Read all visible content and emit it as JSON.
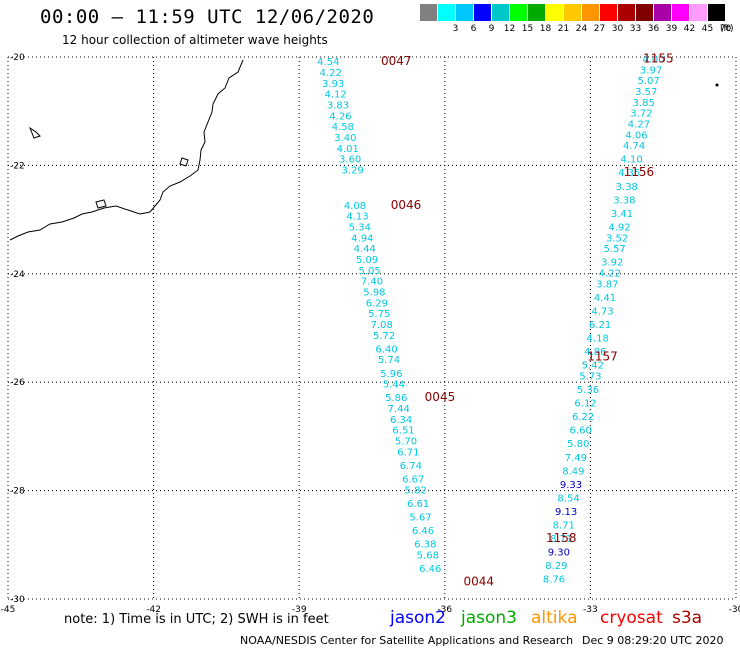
{
  "title": "00:00 – 11:59 UTC 12/06/2020",
  "subtitle": "12 hour collection of altimeter wave heights",
  "legend": {
    "colors": [
      "#808080",
      "#00ffff",
      "#00c8ff",
      "#0000ff",
      "#00c8c8",
      "#00ff00",
      "#00aa00",
      "#ffff00",
      "#ffc800",
      "#ff9600",
      "#ff0000",
      "#aa0000",
      "#800000",
      "#aa00aa",
      "#ff00ff",
      "#ff9cff",
      "#000000"
    ],
    "labels": [
      "",
      "3",
      "6",
      "9",
      "12",
      "15",
      "18",
      "21",
      "24",
      "27",
      "30",
      "33",
      "36",
      "39",
      "42",
      "45",
      "70"
    ],
    "unit": "(ft)"
  },
  "note": "note: 1) Time is in UTC; 2) SWH is in feet",
  "satellites": [
    {
      "name": "jason2",
      "color": "#0000ff"
    },
    {
      "name": "jason3",
      "color": "#00aa00"
    },
    {
      "name": "altika",
      "color": "#ff9600"
    },
    {
      "name": "cryosat",
      "color": "#ff0000"
    },
    {
      "name": "s3a",
      "color": "#aa0000"
    }
  ],
  "credit": "NOAA/NESDIS Center for Satellite Applications and Research",
  "timestamp": "Dec  9 08:29:20 UTC 2020",
  "map": {
    "lon_range": [
      -45,
      -30
    ],
    "lat_range": [
      -30,
      -20
    ],
    "lon_ticks": [
      -45,
      -42,
      -39,
      -36,
      -33,
      -30
    ],
    "lat_ticks": [
      -20,
      -22,
      -24,
      -26,
      -28,
      -30
    ],
    "colors": {
      "cyan": "#00c8e0",
      "blue": "#0000c8",
      "time": "#8b0000"
    },
    "tracks": [
      {
        "name": "pass-0044",
        "time_labels": [
          {
            "text": "0047",
            "lon": -37.0,
            "lat": -20.15
          },
          {
            "text": "0046",
            "lon": -36.8,
            "lat": -22.8
          },
          {
            "text": "0045",
            "lon": -36.1,
            "lat": -26.35
          },
          {
            "text": "0044",
            "lon": -35.3,
            "lat": -29.75
          }
        ],
        "points": [
          {
            "v": "4.54",
            "lon": -38.4,
            "lat": -20.15
          },
          {
            "v": "4.22",
            "lon": -38.35,
            "lat": -20.35
          },
          {
            "v": "3.93",
            "lon": -38.3,
            "lat": -20.55
          },
          {
            "v": "4.12",
            "lon": -38.25,
            "lat": -20.75
          },
          {
            "v": "3.83",
            "lon": -38.2,
            "lat": -20.95
          },
          {
            "v": "4.26",
            "lon": -38.15,
            "lat": -21.15
          },
          {
            "v": "4.58",
            "lon": -38.1,
            "lat": -21.35
          },
          {
            "v": "3.40",
            "lon": -38.05,
            "lat": -21.55
          },
          {
            "v": "4.01",
            "lon": -38.0,
            "lat": -21.75
          },
          {
            "v": "3.60",
            "lon": -37.95,
            "lat": -21.95
          },
          {
            "v": "3.29",
            "lon": -37.9,
            "lat": -22.15
          },
          {
            "v": "4.08",
            "lon": -37.85,
            "lat": -22.8
          },
          {
            "v": "4.13",
            "lon": -37.8,
            "lat": -23.0
          },
          {
            "v": "5.34",
            "lon": -37.75,
            "lat": -23.2
          },
          {
            "v": "4.94",
            "lon": -37.7,
            "lat": -23.4
          },
          {
            "v": "4.44",
            "lon": -37.65,
            "lat": -23.6
          },
          {
            "v": "5.09",
            "lon": -37.6,
            "lat": -23.8
          },
          {
            "v": "5.05",
            "lon": -37.55,
            "lat": -24.0
          },
          {
            "v": "7.40",
            "lon": -37.5,
            "lat": -24.2
          },
          {
            "v": "5.98",
            "lon": -37.45,
            "lat": -24.4
          },
          {
            "v": "6.29",
            "lon": -37.4,
            "lat": -24.6
          },
          {
            "v": "5.75",
            "lon": -37.35,
            "lat": -24.8
          },
          {
            "v": "7.08",
            "lon": -37.3,
            "lat": -25.0
          },
          {
            "v": "5.72",
            "lon": -37.25,
            "lat": -25.2
          },
          {
            "v": "6.40",
            "lon": -37.2,
            "lat": -25.45
          },
          {
            "v": "5.74",
            "lon": -37.15,
            "lat": -25.65
          },
          {
            "v": "5.96",
            "lon": -37.1,
            "lat": -25.9
          },
          {
            "v": "5.44",
            "lon": -37.05,
            "lat": -26.1
          },
          {
            "v": "5.86",
            "lon": -37.0,
            "lat": -26.35
          },
          {
            "v": "7.44",
            "lon": -36.95,
            "lat": -26.55
          },
          {
            "v": "6.34",
            "lon": -36.9,
            "lat": -26.75
          },
          {
            "v": "6.51",
            "lon": -36.85,
            "lat": -26.95
          },
          {
            "v": "5.70",
            "lon": -36.8,
            "lat": -27.15
          },
          {
            "v": "6.71",
            "lon": -36.75,
            "lat": -27.35
          },
          {
            "v": "6.74",
            "lon": -36.7,
            "lat": -27.6
          },
          {
            "v": "6.67",
            "lon": -36.65,
            "lat": -27.85
          },
          {
            "v": "5.82",
            "lon": -36.6,
            "lat": -28.05
          },
          {
            "v": "6.61",
            "lon": -36.55,
            "lat": -28.3
          },
          {
            "v": "5.67",
            "lon": -36.5,
            "lat": -28.55
          },
          {
            "v": "6.46",
            "lon": -36.45,
            "lat": -28.8
          },
          {
            "v": "6.38",
            "lon": -36.4,
            "lat": -29.05
          },
          {
            "v": "5.68",
            "lon": -36.35,
            "lat": -29.25
          },
          {
            "v": "6.46",
            "lon": -36.3,
            "lat": -29.5
          }
        ]
      },
      {
        "name": "pass-1155",
        "time_labels": [
          {
            "text": "1155",
            "lon": -31.6,
            "lat": -20.1
          },
          {
            "text": "1156",
            "lon": -32.0,
            "lat": -22.2
          },
          {
            "text": "1157",
            "lon": -32.75,
            "lat": -25.6
          },
          {
            "text": "1158",
            "lon": -33.6,
            "lat": -28.95
          }
        ],
        "points": [
          {
            "v": "4.00",
            "lon": -31.7,
            "lat": -20.1
          },
          {
            "v": "3.97",
            "lon": -31.75,
            "lat": -20.3
          },
          {
            "v": "5.07",
            "lon": -31.8,
            "lat": -20.5
          },
          {
            "v": "3.57",
            "lon": -31.85,
            "lat": -20.7
          },
          {
            "v": "3.85",
            "lon": -31.9,
            "lat": -20.9
          },
          {
            "v": "3.72",
            "lon": -31.95,
            "lat": -21.1
          },
          {
            "v": "4.27",
            "lon": -32.0,
            "lat": -21.3
          },
          {
            "v": "4.06",
            "lon": -32.05,
            "lat": -21.5
          },
          {
            "v": "4.74",
            "lon": -32.1,
            "lat": -21.7
          },
          {
            "v": "4.10",
            "lon": -32.15,
            "lat": -21.95
          },
          {
            "v": "4.35",
            "lon": -32.2,
            "lat": -22.2
          },
          {
            "v": "3.38",
            "lon": -32.25,
            "lat": -22.45
          },
          {
            "v": "3.38",
            "lon": -32.3,
            "lat": -22.7
          },
          {
            "v": "3.41",
            "lon": -32.35,
            "lat": -22.95
          },
          {
            "v": "4.92",
            "lon": -32.4,
            "lat": -23.2
          },
          {
            "v": "3.52",
            "lon": -32.45,
            "lat": -23.4
          },
          {
            "v": "5.57",
            "lon": -32.5,
            "lat": -23.6
          },
          {
            "v": "3.92",
            "lon": -32.55,
            "lat": -23.85
          },
          {
            "v": "4.22",
            "lon": -32.6,
            "lat": -24.05
          },
          {
            "v": "3.87",
            "lon": -32.65,
            "lat": -24.25
          },
          {
            "v": "4.41",
            "lon": -32.7,
            "lat": -24.5
          },
          {
            "v": "4.73",
            "lon": -32.75,
            "lat": -24.75
          },
          {
            "v": "6.21",
            "lon": -32.8,
            "lat": -25.0
          },
          {
            "v": "4.18",
            "lon": -32.85,
            "lat": -25.25
          },
          {
            "v": "4.86",
            "lon": -32.9,
            "lat": -25.5
          },
          {
            "v": "5.42",
            "lon": -32.95,
            "lat": -25.75
          },
          {
            "v": "5.73",
            "lon": -33.0,
            "lat": -25.95
          },
          {
            "v": "5.36",
            "lon": -33.05,
            "lat": -26.2
          },
          {
            "v": "6.12",
            "lon": -33.1,
            "lat": -26.45
          },
          {
            "v": "6.22",
            "lon": -33.15,
            "lat": -26.7
          },
          {
            "v": "6.60",
            "lon": -33.2,
            "lat": -26.95
          },
          {
            "v": "5.80",
            "lon": -33.25,
            "lat": -27.2
          },
          {
            "v": "7.49",
            "lon": -33.3,
            "lat": -27.45
          },
          {
            "v": "8.49",
            "lon": -33.35,
            "lat": -27.7
          },
          {
            "v": "9.33",
            "lon": -33.4,
            "lat": -27.95
          },
          {
            "v": "8.54",
            "lon": -33.45,
            "lat": -28.2
          },
          {
            "v": "9.13",
            "lon": -33.5,
            "lat": -28.45
          },
          {
            "v": "8.71",
            "lon": -33.55,
            "lat": -28.7
          },
          {
            "v": "8.71",
            "lon": -33.6,
            "lat": -28.95
          },
          {
            "v": "9.30",
            "lon": -33.65,
            "lat": -29.2
          },
          {
            "v": "8.29",
            "lon": -33.7,
            "lat": -29.45
          },
          {
            "v": "8.76",
            "lon": -33.75,
            "lat": -29.7
          }
        ]
      }
    ]
  }
}
